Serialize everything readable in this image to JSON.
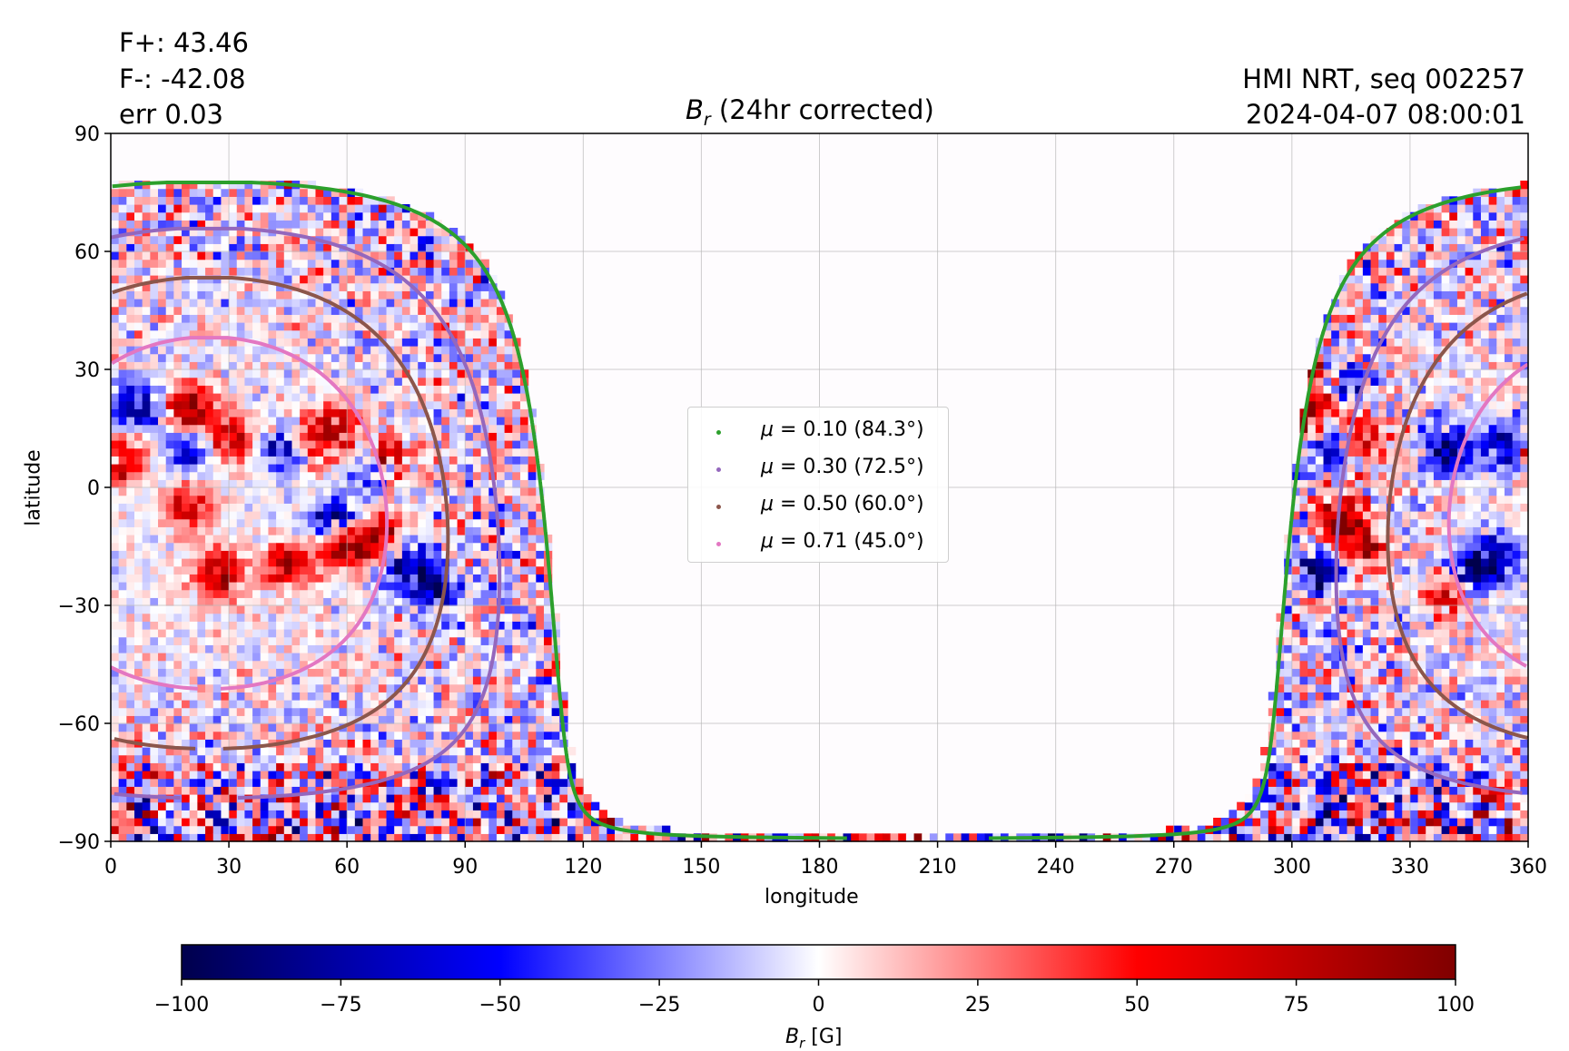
{
  "header": {
    "flux_pos": "F+: 43.46",
    "flux_neg": "F-: -42.08",
    "error": "err 0.03",
    "title_symbol": "B",
    "title_subscript": "r",
    "title_rest": " (24hr corrected)",
    "source": "HMI NRT, seq 002257",
    "timestamp": "2024-04-07 08:00:01"
  },
  "chart_data": {
    "type": "heatmap",
    "title": "B_r (24hr corrected)",
    "xlabel": "longitude",
    "ylabel": "latitude",
    "xlim": [
      0,
      360
    ],
    "ylim": [
      -90,
      90
    ],
    "xticks": [
      0,
      30,
      60,
      90,
      120,
      150,
      180,
      210,
      240,
      270,
      300,
      330,
      360
    ],
    "yticks": [
      -90,
      -60,
      -30,
      0,
      30,
      60,
      90
    ],
    "xtick_labels": [
      "0",
      "30",
      "60",
      "90",
      "120",
      "150",
      "180",
      "210",
      "240",
      "270",
      "300",
      "330",
      "360"
    ],
    "ytick_labels": [
      "−90",
      "−60",
      "−30",
      "0",
      "30",
      "60",
      "90"
    ],
    "grid": true,
    "disk_center": {
      "longitude": 25,
      "latitude": -6.5
    },
    "observed_disk_longitude_range": [
      295,
      115
    ],
    "colormap": "seismic",
    "colorbar": {
      "label_symbol": "B",
      "label_subscript": "r",
      "label_unit": " [G]",
      "range": [
        -100,
        100
      ],
      "ticks": [
        -100,
        -75,
        -50,
        -25,
        0,
        25,
        50,
        75,
        100
      ],
      "tick_labels": [
        "−100",
        "−75",
        "−50",
        "−25",
        "0",
        "25",
        "50",
        "75",
        "100"
      ],
      "colors": [
        "#00004c",
        "#0000ff",
        "#ffffff",
        "#ff0000",
        "#800000"
      ]
    },
    "series": [
      {
        "name": "μ = 0.10 (84.3°)",
        "mu": 0.1,
        "angle_deg": 84.3,
        "color": "#2ca02c",
        "label_prefix": "μ",
        "label_rest": " = 0.10 (84.3°)"
      },
      {
        "name": "μ = 0.30 (72.5°)",
        "mu": 0.3,
        "angle_deg": 72.5,
        "color": "#9467bd",
        "label_prefix": "μ",
        "label_rest": " = 0.30 (72.5°)"
      },
      {
        "name": "μ = 0.50 (60.0°)",
        "mu": 0.5,
        "angle_deg": 60.0,
        "color": "#8c564b",
        "label_prefix": "μ",
        "label_rest": " = 0.50 (60.0°)"
      },
      {
        "name": "μ = 0.71 (45.0°)",
        "mu": 0.71,
        "angle_deg": 45.0,
        "color": "#e377c2",
        "label_prefix": "μ",
        "label_rest": " = 0.71 (45.0°)"
      }
    ],
    "active_regions": [
      {
        "lon": 2,
        "lat": 8,
        "polarity": "positive",
        "strength": 100
      },
      {
        "lon": 7,
        "lat": 20,
        "polarity": "negative",
        "strength": 80
      },
      {
        "lon": 20,
        "lat": 20,
        "polarity": "positive",
        "strength": 85
      },
      {
        "lon": 30,
        "lat": 13,
        "polarity": "positive",
        "strength": 75
      },
      {
        "lon": 20,
        "lat": 10,
        "polarity": "negative",
        "strength": 65
      },
      {
        "lon": 45,
        "lat": 10,
        "polarity": "negative",
        "strength": 80
      },
      {
        "lon": 50,
        "lat": 12,
        "polarity": "positive",
        "strength": 70
      },
      {
        "lon": 57,
        "lat": 15,
        "polarity": "positive",
        "strength": 70
      },
      {
        "lon": 70,
        "lat": 7,
        "polarity": "positive",
        "strength": 95
      },
      {
        "lon": 67,
        "lat": 5,
        "polarity": "negative",
        "strength": 85
      },
      {
        "lon": 28,
        "lat": -22,
        "polarity": "positive",
        "strength": 85
      },
      {
        "lon": 45,
        "lat": -20,
        "polarity": "positive",
        "strength": 80
      },
      {
        "lon": 60,
        "lat": -15,
        "polarity": "positive",
        "strength": 85
      },
      {
        "lon": 68,
        "lat": -13,
        "polarity": "positive",
        "strength": 75
      },
      {
        "lon": 20,
        "lat": -5,
        "polarity": "positive",
        "strength": 60
      },
      {
        "lon": 75,
        "lat": -20,
        "polarity": "negative",
        "strength": 85
      },
      {
        "lon": 83,
        "lat": -25,
        "polarity": "negative",
        "strength": 75
      },
      {
        "lon": 57,
        "lat": -8,
        "polarity": "negative",
        "strength": 70
      },
      {
        "lon": 307,
        "lat": 28,
        "polarity": "positive",
        "strength": 95
      },
      {
        "lon": 312,
        "lat": 27,
        "polarity": "negative",
        "strength": 85
      },
      {
        "lon": 305,
        "lat": 18,
        "polarity": "positive",
        "strength": 80
      },
      {
        "lon": 310,
        "lat": 10,
        "polarity": "negative",
        "strength": 75
      },
      {
        "lon": 318,
        "lat": 12,
        "polarity": "positive",
        "strength": 75
      },
      {
        "lon": 307,
        "lat": -20,
        "polarity": "negative",
        "strength": 85
      },
      {
        "lon": 312,
        "lat": -8,
        "polarity": "positive",
        "strength": 90
      },
      {
        "lon": 318,
        "lat": -15,
        "polarity": "positive",
        "strength": 70
      },
      {
        "lon": 340,
        "lat": 10,
        "polarity": "negative",
        "strength": 75
      },
      {
        "lon": 355,
        "lat": 10,
        "polarity": "negative",
        "strength": 95
      },
      {
        "lon": 345,
        "lat": -22,
        "polarity": "negative",
        "strength": 80
      },
      {
        "lon": 352,
        "lat": -18,
        "polarity": "negative",
        "strength": 75
      },
      {
        "lon": 340,
        "lat": -27,
        "polarity": "positive",
        "strength": 60
      }
    ]
  }
}
